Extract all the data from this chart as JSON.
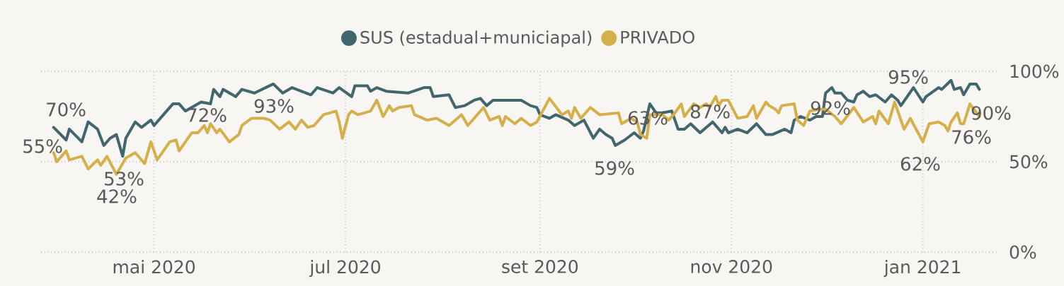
{
  "chart_data": {
    "type": "line",
    "xlim": [
      "2020-03-26",
      "2021-01-25"
    ],
    "xticks": [
      {
        "value": "2020-05-01",
        "label": "mai 2020"
      },
      {
        "value": "2020-07-01",
        "label": "jul 2020"
      },
      {
        "value": "2020-09-01",
        "label": "set 2020"
      },
      {
        "value": "2020-11-01",
        "label": "nov 2020"
      },
      {
        "value": "2021-01-01",
        "label": "jan 2021"
      }
    ],
    "ylim": [
      0,
      100
    ],
    "yticks": [
      {
        "value": 0,
        "label": "0%"
      },
      {
        "value": 50,
        "label": "50%"
      },
      {
        "value": 100,
        "label": "100%"
      }
    ],
    "grid": true,
    "legend": "top",
    "marker": "none",
    "line_style": "solid",
    "series": [
      {
        "name": "SUS (estadual+municiapal)",
        "color": "#41666e",
        "x": [
          "2020-03-30",
          "2020-04-03",
          "2020-04-04",
          "2020-04-08",
          "2020-04-10",
          "2020-04-13",
          "2020-04-15",
          "2020-04-17",
          "2020-04-19",
          "2020-04-21",
          "2020-04-22",
          "2020-04-25",
          "2020-04-27",
          "2020-04-30",
          "2020-05-01",
          "2020-05-04",
          "2020-05-07",
          "2020-05-09",
          "2020-05-11",
          "2020-05-16",
          "2020-05-19",
          "2020-05-20",
          "2020-05-22",
          "2020-05-23",
          "2020-05-27",
          "2020-05-29",
          "2020-06-02",
          "2020-06-08",
          "2020-06-11",
          "2020-06-14",
          "2020-06-20",
          "2020-06-22",
          "2020-06-27",
          "2020-06-29",
          "2020-07-03",
          "2020-07-04",
          "2020-07-08",
          "2020-07-09",
          "2020-07-11",
          "2020-07-14",
          "2020-07-21",
          "2020-07-26",
          "2020-07-28",
          "2020-07-29",
          "2020-08-03",
          "2020-08-05",
          "2020-08-08",
          "2020-08-11",
          "2020-08-13",
          "2020-08-15",
          "2020-08-17",
          "2020-08-23",
          "2020-08-26",
          "2020-08-29",
          "2020-08-31",
          "2020-09-01",
          "2020-09-04",
          "2020-09-06",
          "2020-09-10",
          "2020-09-12",
          "2020-09-15",
          "2020-09-18",
          "2020-09-20",
          "2020-09-22",
          "2020-09-24",
          "2020-09-25",
          "2020-09-28",
          "2020-10-01",
          "2020-10-03",
          "2020-10-04",
          "2020-10-06",
          "2020-10-08",
          "2020-10-10",
          "2020-10-13",
          "2020-10-15",
          "2020-10-17",
          "2020-10-19",
          "2020-10-22",
          "2020-10-26",
          "2020-10-29",
          "2020-10-30",
          "2020-10-31",
          "2020-11-03",
          "2020-11-06",
          "2020-11-09",
          "2020-11-12",
          "2020-11-14",
          "2020-11-18",
          "2020-11-20",
          "2020-11-21",
          "2020-11-23",
          "2020-11-26",
          "2020-11-28",
          "2020-11-30",
          "2020-12-01",
          "2020-12-03",
          "2020-12-04",
          "2020-12-06",
          "2020-12-08",
          "2020-12-10",
          "2020-12-11",
          "2020-12-13",
          "2020-12-15",
          "2020-12-17",
          "2020-12-20",
          "2020-12-22",
          "2020-12-24",
          "2020-12-25",
          "2020-12-29",
          "2021-01-01",
          "2021-01-02",
          "2021-01-06",
          "2021-01-07",
          "2021-01-10",
          "2021-01-11",
          "2021-01-13",
          "2021-01-14",
          "2021-01-16",
          "2021-01-18",
          "2021-01-19"
        ],
        "values": [
          69,
          62,
          68,
          61,
          72,
          68,
          59,
          63,
          65,
          53,
          63,
          72,
          69,
          73,
          70,
          76,
          82,
          82,
          78,
          83,
          82,
          90,
          86,
          90,
          86,
          90,
          88,
          93,
          88,
          91,
          87,
          91,
          88,
          91,
          86,
          92,
          92,
          89,
          91,
          89,
          88,
          91,
          91,
          86,
          87,
          80,
          81,
          84,
          85,
          81,
          84,
          84,
          84,
          81,
          80,
          76,
          74,
          76,
          73,
          70,
          73,
          63,
          68,
          65,
          63,
          59,
          62,
          66,
          63,
          67,
          82,
          77,
          77,
          78,
          68,
          68,
          71,
          66,
          72,
          66,
          69,
          66,
          68,
          66,
          71,
          65,
          65,
          68,
          66,
          73,
          75,
          73,
          75,
          75,
          88,
          91,
          88,
          88,
          84,
          83,
          87,
          89,
          86,
          87,
          83,
          87,
          84,
          81,
          91,
          83,
          86,
          91,
          90,
          95,
          90,
          91,
          87,
          93,
          93,
          90
        ]
      },
      {
        "name": "PRIVADO",
        "color": "#d4af4a",
        "x": [
          "2020-03-30",
          "2020-03-31",
          "2020-04-03",
          "2020-04-04",
          "2020-04-08",
          "2020-04-10",
          "2020-04-13",
          "2020-04-14",
          "2020-04-16",
          "2020-04-19",
          "2020-04-22",
          "2020-04-25",
          "2020-04-28",
          "2020-04-30",
          "2020-05-02",
          "2020-05-04",
          "2020-05-06",
          "2020-05-08",
          "2020-05-09",
          "2020-05-13",
          "2020-05-15",
          "2020-05-17",
          "2020-05-18",
          "2020-05-19",
          "2020-05-21",
          "2020-05-22",
          "2020-05-25",
          "2020-05-28",
          "2020-05-29",
          "2020-06-01",
          "2020-06-05",
          "2020-06-07",
          "2020-06-10",
          "2020-06-13",
          "2020-06-15",
          "2020-06-17",
          "2020-06-19",
          "2020-06-21",
          "2020-06-24",
          "2020-06-28",
          "2020-06-29",
          "2020-06-30",
          "2020-07-02",
          "2020-07-03",
          "2020-07-05",
          "2020-07-09",
          "2020-07-11",
          "2020-07-13",
          "2020-07-15",
          "2020-07-16",
          "2020-07-18",
          "2020-07-22",
          "2020-07-23",
          "2020-07-27",
          "2020-07-30",
          "2020-08-03",
          "2020-08-07",
          "2020-08-09",
          "2020-08-14",
          "2020-08-16",
          "2020-08-19",
          "2020-08-20",
          "2020-08-21",
          "2020-08-24",
          "2020-08-26",
          "2020-08-29",
          "2020-08-31",
          "2020-09-04",
          "2020-09-08",
          "2020-09-10",
          "2020-09-11",
          "2020-09-12",
          "2020-09-14",
          "2020-09-17",
          "2020-09-20",
          "2020-09-26",
          "2020-09-27",
          "2020-09-30",
          "2020-10-02",
          "2020-10-03",
          "2020-10-05",
          "2020-10-06",
          "2020-10-10",
          "2020-10-12",
          "2020-10-14",
          "2020-10-16",
          "2020-10-17",
          "2020-10-20",
          "2020-10-22",
          "2020-10-24",
          "2020-10-25",
          "2020-10-27",
          "2020-10-28",
          "2020-10-29",
          "2020-10-31",
          "2020-11-03",
          "2020-11-06",
          "2020-11-08",
          "2020-11-09",
          "2020-11-12",
          "2020-11-13",
          "2020-11-15",
          "2020-11-16",
          "2020-11-17",
          "2020-11-21",
          "2020-11-22",
          "2020-11-24",
          "2020-11-26",
          "2020-11-29",
          "2020-12-01",
          "2020-12-04",
          "2020-12-06",
          "2020-12-10",
          "2020-12-13",
          "2020-12-16",
          "2020-12-17",
          "2020-12-18",
          "2020-12-21",
          "2020-12-23",
          "2020-12-26",
          "2020-12-28",
          "2021-01-01",
          "2021-01-03",
          "2021-01-06",
          "2021-01-08",
          "2021-01-09",
          "2021-01-10",
          "2021-01-12",
          "2021-01-13",
          "2021-01-14",
          "2021-01-16",
          "2021-01-19"
        ],
        "values": [
          55,
          50,
          56,
          51,
          53,
          46,
          51,
          48,
          53,
          43,
          52,
          55,
          49,
          61,
          51,
          56,
          61,
          62,
          56,
          66,
          66,
          70,
          66,
          71,
          66,
          68,
          61,
          65,
          70,
          74,
          74,
          73,
          68,
          72,
          68,
          73,
          69,
          70,
          76,
          78,
          72,
          63,
          76,
          78,
          76,
          78,
          84,
          75,
          81,
          78,
          80,
          81,
          76,
          73,
          74,
          70,
          76,
          70,
          80,
          73,
          75,
          70,
          75,
          71,
          74,
          70,
          72,
          85,
          76,
          78,
          74,
          80,
          74,
          80,
          76,
          77,
          71,
          74,
          72,
          65,
          63,
          76,
          76,
          73,
          77,
          82,
          75,
          82,
          80,
          82,
          80,
          86,
          81,
          84,
          84,
          74,
          75,
          81,
          74,
          83,
          81,
          79,
          77,
          81,
          82,
          73,
          70,
          78,
          79,
          79,
          75,
          71,
          80,
          72,
          75,
          71,
          78,
          71,
          83,
          68,
          74,
          61,
          71,
          72,
          70,
          67,
          72,
          77,
          71,
          71,
          82,
          75
        ]
      }
    ],
    "annotations": [
      "70%",
      "55%",
      "53%",
      "42%",
      "72%",
      "93%",
      "59%",
      "63%",
      "87%",
      "92%",
      "95%",
      "90%",
      "76%",
      "62%"
    ]
  }
}
